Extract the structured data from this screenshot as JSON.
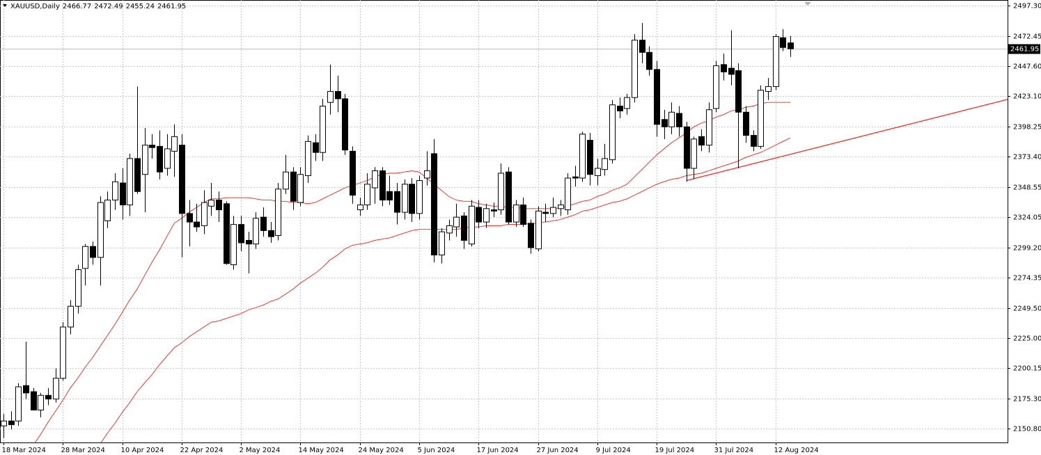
{
  "chart_data": {
    "type": "candlestick",
    "title": "XAUUSD,Daily",
    "categories": [
      "18 Mar 2024",
      null,
      null,
      null,
      null,
      null,
      null,
      null,
      "28 Mar 2024",
      null,
      null,
      null,
      null,
      null,
      null,
      null,
      "10 Apr 2024",
      null,
      null,
      null,
      null,
      null,
      null,
      null,
      "22 Apr 2024",
      null,
      null,
      null,
      null,
      null,
      null,
      null,
      "2 May 2024",
      null,
      null,
      null,
      null,
      null,
      null,
      null,
      "14 May 2024",
      null,
      null,
      null,
      null,
      null,
      null,
      null,
      "24 May 2024",
      null,
      null,
      null,
      null,
      null,
      null,
      null,
      "5 Jun 2024",
      null,
      null,
      null,
      null,
      null,
      null,
      null,
      "17 Jun 2024",
      null,
      null,
      null,
      null,
      null,
      null,
      null,
      "27 Jun 2024",
      null,
      null,
      null,
      null,
      null,
      null,
      null,
      "9 Jul 2024",
      null,
      null,
      null,
      null,
      null,
      null,
      null,
      "19 Jul 2024",
      null,
      null,
      null,
      null,
      null,
      null,
      null,
      "31 Jul 2024",
      null,
      null,
      null,
      null,
      null,
      null,
      null,
      "12 Aug 2024",
      null,
      null
    ],
    "open": [
      2153,
      2157,
      2157,
      2186,
      2181,
      2166,
      2178,
      2175,
      2192,
      2234,
      2251,
      2282,
      2300,
      2291,
      2321,
      2338,
      2352,
      2334,
      2372,
      2359,
      2383,
      2382,
      2364,
      2378,
      2383,
      2327,
      2320,
      2317,
      2333,
      2338,
      2335,
      2285,
      2318,
      2305,
      2302,
      2324,
      2313,
      2309,
      2347,
      2361,
      2336,
      2358,
      2385,
      2377,
      2418,
      2427,
      2421,
      2378,
      2330,
      2334,
      2348,
      2362,
      2345,
      2345,
      2328,
      2351,
      2327,
      2356,
      2376,
      2293,
      2311,
      2316,
      2325,
      2302,
      2332,
      2320,
      2330,
      2330,
      2361,
      2320,
      2334,
      2319,
      2298,
      2328,
      2327,
      2331,
      2330,
      2357,
      2356,
      2387,
      2358,
      2363,
      2371,
      2415,
      2413,
      2422,
      2469,
      2459,
      2445,
      2404,
      2398,
      2409,
      2398,
      2364,
      2390,
      2383,
      2413,
      2449,
      2446,
      2444,
      2410,
      2391,
      2382,
      2427,
      2431,
      2471,
      2466.77
    ],
    "high": [
      2163,
      2165,
      2188,
      2222,
      2184,
      2180,
      2184,
      2200,
      2238,
      2256,
      2285,
      2302,
      2304,
      2341,
      2345,
      2360,
      2364,
      2376,
      2431,
      2397,
      2392,
      2395,
      2392,
      2400,
      2392,
      2338,
      2335,
      2346,
      2352,
      2345,
      2337,
      2325,
      2325,
      2312,
      2328,
      2332,
      2320,
      2352,
      2375,
      2365,
      2365,
      2391,
      2392,
      2421,
      2449,
      2440,
      2425,
      2382,
      2340,
      2360,
      2365,
      2365,
      2358,
      2352,
      2355,
      2356,
      2358,
      2378,
      2388,
      2315,
      2322,
      2335,
      2328,
      2338,
      2338,
      2335,
      2336,
      2368,
      2365,
      2338,
      2340,
      2322,
      2333,
      2335,
      2340,
      2338,
      2360,
      2366,
      2394,
      2393,
      2372,
      2384,
      2420,
      2422,
      2425,
      2474,
      2483,
      2464,
      2452,
      2412,
      2418,
      2415,
      2402,
      2390,
      2396,
      2418,
      2452,
      2458,
      2477,
      2450,
      2415,
      2395,
      2432,
      2438,
      2474,
      2478,
      2472.49
    ],
    "low": [
      2143,
      2150,
      2153,
      2175,
      2166,
      2160,
      2170,
      2172,
      2190,
      2228,
      2245,
      2268,
      2285,
      2268,
      2315,
      2330,
      2322,
      2325,
      2343,
      2328,
      2372,
      2355,
      2358,
      2357,
      2291,
      2300,
      2312,
      2310,
      2325,
      2320,
      2285,
      2281,
      2296,
      2278,
      2298,
      2308,
      2303,
      2305,
      2343,
      2330,
      2333,
      2352,
      2370,
      2370,
      2408,
      2410,
      2375,
      2335,
      2325,
      2330,
      2335,
      2333,
      2334,
      2318,
      2322,
      2320,
      2322,
      2350,
      2287,
      2286,
      2305,
      2308,
      2298,
      2300,
      2315,
      2315,
      2324,
      2326,
      2318,
      2316,
      2316,
      2294,
      2296,
      2320,
      2324,
      2325,
      2326,
      2349,
      2353,
      2350,
      2350,
      2358,
      2368,
      2405,
      2408,
      2418,
      2450,
      2440,
      2390,
      2388,
      2392,
      2390,
      2353,
      2355,
      2378,
      2377,
      2410,
      2436,
      2432,
      2364,
      2385,
      2378,
      2380,
      2420,
      2428,
      2460,
      2455.24
    ],
    "close": [
      2157,
      2154,
      2185,
      2180,
      2166,
      2178,
      2175,
      2192,
      2234,
      2251,
      2281,
      2300,
      2291,
      2336,
      2338,
      2353,
      2334,
      2372,
      2345,
      2383,
      2381,
      2361,
      2380,
      2390,
      2327,
      2320,
      2316,
      2336,
      2338,
      2330,
      2286,
      2318,
      2303,
      2302,
      2323,
      2313,
      2308,
      2347,
      2361,
      2337,
      2359,
      2386,
      2377,
      2415,
      2427,
      2421,
      2379,
      2342,
      2334,
      2351,
      2362,
      2338,
      2338,
      2328,
      2351,
      2327,
      2354,
      2362,
      2293,
      2312,
      2317,
      2324,
      2305,
      2333,
      2320,
      2331,
      2329,
      2360,
      2320,
      2334,
      2318,
      2299,
      2329,
      2327,
      2332,
      2334,
      2356,
      2356,
      2392,
      2359,
      2364,
      2372,
      2416,
      2411,
      2422,
      2469,
      2459,
      2445,
      2400,
      2398,
      2410,
      2398,
      2364,
      2388,
      2383,
      2412,
      2448,
      2443,
      2441,
      2410,
      2391,
      2382,
      2428,
      2431,
      2472,
      2463,
      2461.95
    ],
    "up_color": "#ffffff",
    "down_color": "#000000",
    "overlays": [
      {
        "color": "#e8261e",
        "values": [
          null,
          null,
          null,
          null,
          2137,
          2146,
          2156,
          2165,
          2174,
          2184,
          2192,
          2201,
          2209,
          2218,
          2227,
          2236,
          2246,
          2256,
          2265,
          2276,
          2287,
          2297,
          2308,
          2319,
          2323,
          2328,
          2332,
          2336,
          2339,
          2339,
          2340,
          2340,
          2340,
          2340,
          2339,
          2338,
          2338,
          2337,
          2337,
          2336,
          2336,
          2335,
          2336,
          2339,
          2342,
          2345,
          2348,
          2350,
          2352,
          2354,
          2357,
          2359,
          2360,
          2360,
          2361,
          2362,
          2361,
          2356,
          2351,
          2346,
          2341,
          2338,
          2337,
          2337,
          2335,
          2334,
          2333,
          2333,
          2332,
          2332,
          2331,
          2331,
          2331,
          2331,
          2331,
          2331,
          2333,
          2335,
          2337,
          2338,
          2341,
          2343,
          2346,
          2348,
          2351,
          2357,
          2363,
          2369,
          2375,
          2380,
          2385,
          2389,
          2393,
          2398,
          2401,
          2403,
          2406,
          2408,
          2411,
          2412,
          2414,
          2415,
          2417,
          2418,
          2418,
          2418,
          2418
        ]
      },
      {
        "color": "#e8261e",
        "values": [
          null,
          null,
          null,
          null,
          null,
          null,
          null,
          null,
          null,
          null,
          null,
          null,
          null,
          2138,
          2147,
          2155,
          2164,
          2172,
          2181,
          2188,
          2195,
          2203,
          2210,
          2217,
          2221,
          2226,
          2230,
          2234,
          2238,
          2239,
          2241,
          2243,
          2245,
          2248,
          2250,
          2252,
          2255,
          2257,
          2261,
          2265,
          2270,
          2274,
          2278,
          2283,
          2289,
          2293,
          2298,
          2301,
          2302,
          2303,
          2305,
          2306,
          2307,
          2309,
          2311,
          2313,
          2314,
          2314,
          2314,
          2314,
          2314,
          2314,
          2315,
          2316,
          2316,
          2317,
          2317,
          2317,
          2318,
          2318,
          2318,
          2319,
          2319,
          2320,
          2321,
          2322,
          2324,
          2326,
          2329,
          2330,
          2332,
          2334,
          2336,
          2337,
          2339,
          2342,
          2345,
          2348,
          2351,
          2353,
          2355,
          2356,
          2358,
          2359,
          2360,
          2362,
          2364,
          2366,
          2368,
          2370,
          2373,
          2375,
          2377,
          2380,
          2383,
          2386,
          2389
        ]
      }
    ],
    "trendline": {
      "color": "#e8261e",
      "x": [
        92,
        135.6
      ],
      "values": [
        2354,
        2421
      ]
    },
    "ylim": [
      2139.4,
      2501.9
    ],
    "yticks": [
      {
        "value": 2150.8,
        "label": "2150.80"
      },
      {
        "value": 2175.3,
        "label": "2175.30"
      },
      2200.15,
      {
        "value": 2225.0,
        "label": "2225.00"
      },
      {
        "value": 2249.5,
        "label": "2249.50"
      },
      2274.35,
      {
        "value": 2299.2,
        "label": "2299.20"
      },
      2324.05,
      2348.55,
      {
        "value": 2373.4,
        "label": "2373.40"
      },
      2398.25,
      {
        "value": 2423.1,
        "label": "2423.10"
      },
      {
        "value": 2447.6,
        "label": "2447.60"
      },
      2472.45,
      {
        "value": 2497.3,
        "label": "2497.30"
      }
    ],
    "grid": true
  }
}
